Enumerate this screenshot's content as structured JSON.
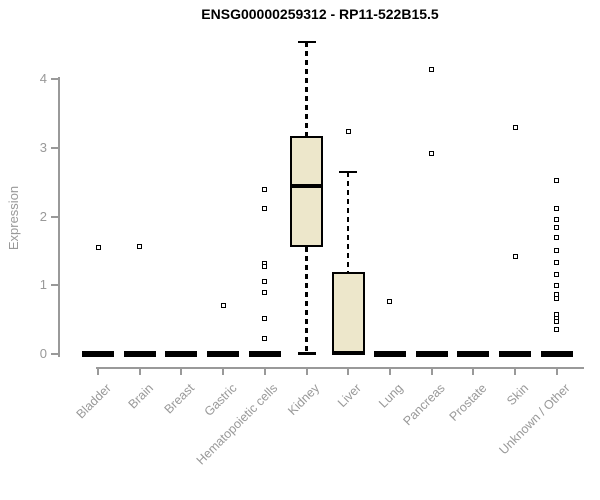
{
  "title": "ENSG00000259312 - RP11-522B15.5",
  "chart_data": {
    "type": "boxplot",
    "title": "ENSG00000259312 - RP11-522B15.5",
    "ylabel": "Expression",
    "xlabel": "",
    "ylim": [
      0,
      4.6
    ],
    "yticks": [
      0,
      1,
      2,
      3,
      4
    ],
    "grid": false,
    "legend": "none",
    "box_fill_color": "#EDE7CB",
    "box_border_color": "#000000",
    "median_color": "#000000",
    "axis_color": "#999999",
    "label_color": "#999999",
    "title_color": "#000000",
    "categories": [
      "Bladder",
      "Brain",
      "Breast",
      "Gastric",
      "Hematopoietic cells",
      "Kidney",
      "Liver",
      "Lung",
      "Pancreas",
      "Prostate",
      "Skin",
      "Unknown / Other"
    ],
    "series": [
      {
        "category": "Bladder",
        "q1": 0,
        "median": 0,
        "q3": 0,
        "whisker_low": 0,
        "whisker_high": 0,
        "outliers": [
          1.55
        ]
      },
      {
        "category": "Brain",
        "q1": 0,
        "median": 0,
        "q3": 0,
        "whisker_low": 0,
        "whisker_high": 0,
        "outliers": [
          1.56
        ]
      },
      {
        "category": "Breast",
        "q1": 0,
        "median": 0,
        "q3": 0,
        "whisker_low": 0,
        "whisker_high": 0,
        "outliers": []
      },
      {
        "category": "Gastric",
        "q1": 0,
        "median": 0,
        "q3": 0,
        "whisker_low": 0,
        "whisker_high": 0,
        "outliers": [
          0.71
        ]
      },
      {
        "category": "Hematopoietic cells",
        "q1": 0,
        "median": 0,
        "q3": 0,
        "whisker_low": 0,
        "whisker_high": 0,
        "outliers": [
          2.4,
          2.12,
          1.32,
          1.27,
          1.05,
          0.89,
          0.52,
          0.22
        ]
      },
      {
        "category": "Kidney",
        "q1": 1.56,
        "median": 2.44,
        "q3": 3.17,
        "whisker_low": 0.01,
        "whisker_high": 4.54,
        "outliers": []
      },
      {
        "category": "Liver",
        "q1": 0,
        "median": 0.02,
        "q3": 1.19,
        "whisker_low": 0,
        "whisker_high": 2.65,
        "outliers": [
          3.23
        ]
      },
      {
        "category": "Lung",
        "q1": 0,
        "median": 0,
        "q3": 0,
        "whisker_low": 0,
        "whisker_high": 0,
        "outliers": [
          0.76
        ]
      },
      {
        "category": "Pancreas",
        "q1": 0,
        "median": 0,
        "q3": 0,
        "whisker_low": 0,
        "whisker_high": 0,
        "outliers": [
          4.14,
          2.92
        ]
      },
      {
        "category": "Prostate",
        "q1": 0,
        "median": 0,
        "q3": 0,
        "whisker_low": 0,
        "whisker_high": 0,
        "outliers": []
      },
      {
        "category": "Skin",
        "q1": 0,
        "median": 0,
        "q3": 0,
        "whisker_low": 0,
        "whisker_high": 0,
        "outliers": [
          3.29,
          1.42
        ]
      },
      {
        "category": "Unknown / Other",
        "q1": 0,
        "median": 0,
        "q3": 0,
        "whisker_low": 0,
        "whisker_high": 0,
        "outliers": [
          2.52,
          2.11,
          1.95,
          1.84,
          1.69,
          1.5,
          1.33,
          1.16,
          1.0,
          0.86,
          0.81,
          0.58,
          0.52,
          0.47,
          0.36
        ]
      }
    ]
  }
}
